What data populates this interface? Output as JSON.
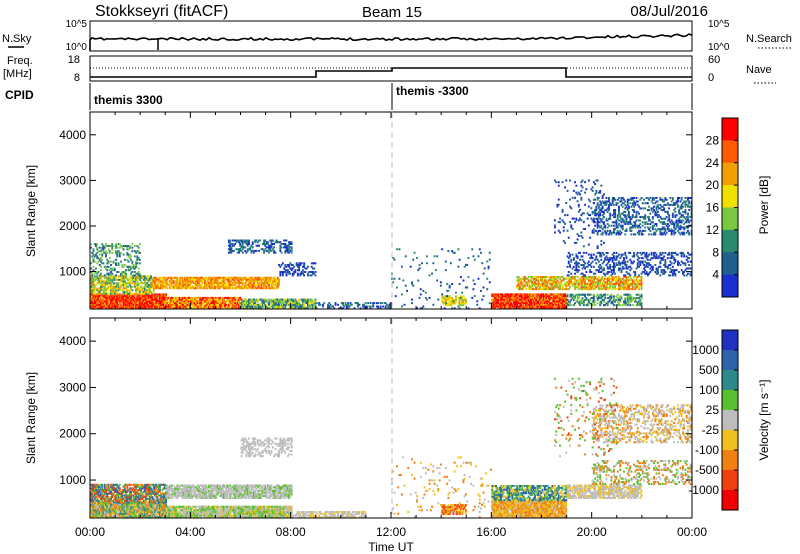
{
  "header": {
    "title": "Stokkseyri (fitACF)",
    "beam": "Beam 15",
    "date": "08/Jul/2016"
  },
  "nsky_panel": {
    "left_label": "N.Sky",
    "left_ticks": [
      "10^5",
      "10^0"
    ],
    "right_ticks": [
      "10^5",
      "10^0"
    ],
    "right_label": "N.Search"
  },
  "freq_panel": {
    "left_label_1": "Freq.",
    "left_label_2": "[MHz]",
    "left_ticks": [
      "18",
      "8"
    ],
    "right_ticks": [
      "60",
      "0"
    ],
    "right_label": "Nave",
    "cpid_label": "CPID",
    "cpid_values": [
      "themis 3300",
      "themis -3300"
    ]
  },
  "chart_data": [
    {
      "type": "heatmap",
      "name": "power",
      "ylabel": "Slant Range [km]",
      "y_ticks": [
        "1000",
        "2000",
        "3000",
        "4000"
      ],
      "y_tick_values": [
        1000,
        2000,
        3000,
        4000
      ],
      "ylim": [
        180,
        4500
      ],
      "xlim": [
        0,
        24
      ],
      "colorbar_label": "Power [dB]",
      "colorbar_ticks": [
        "28",
        "24",
        "20",
        "16",
        "12",
        "8",
        "4"
      ],
      "colorbar_colors": [
        "#ff0000",
        "#ff5a00",
        "#f0a000",
        "#f0e000",
        "#7ac840",
        "#2a8a70",
        "#206090",
        "#1b2fd0"
      ]
    },
    {
      "type": "heatmap",
      "name": "velocity",
      "ylabel": "Slant Range [km]",
      "y_ticks": [
        "1000",
        "2000",
        "3000",
        "4000"
      ],
      "y_tick_values": [
        1000,
        2000,
        3000,
        4000
      ],
      "ylim": [
        180,
        4500
      ],
      "xlim": [
        0,
        24
      ],
      "xlabel": "Time UT",
      "x_ticks": [
        "00:00",
        "04:00",
        "08:00",
        "12:00",
        "16:00",
        "20:00",
        "00:00"
      ],
      "x_tick_values": [
        0,
        4,
        8,
        12,
        16,
        20,
        24
      ],
      "colorbar_label": "Velocity [m s⁻¹]",
      "colorbar_ticks": [
        "1000",
        "500",
        "100",
        "25",
        "-25",
        "-100",
        "-500",
        "-1000"
      ],
      "colorbar_colors": [
        "#2030c0",
        "#2f62a8",
        "#2e8a8a",
        "#5bc030",
        "#bdbdbd",
        "#f0c020",
        "#f08010",
        "#f04010",
        "#f00000"
      ]
    }
  ]
}
